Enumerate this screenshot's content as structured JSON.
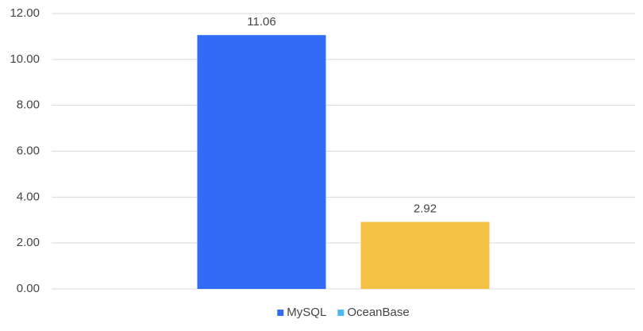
{
  "chart_data": {
    "type": "bar",
    "categories": [
      null
    ],
    "series": [
      {
        "name": "MySQL",
        "color": "#316bf6",
        "legend_color": "#316bf6",
        "values": [
          11.06
        ]
      },
      {
        "name": "OceanBase",
        "color": "#f4c242",
        "legend_color": "#4db8f2",
        "values": [
          2.92
        ]
      }
    ],
    "ylim": [
      0,
      12
    ],
    "yticks": [
      {
        "value": 0,
        "label": "0.00"
      },
      {
        "value": 2,
        "label": "2.00"
      },
      {
        "value": 4,
        "label": "4.00"
      },
      {
        "value": 6,
        "label": "6.00"
      },
      {
        "value": 8,
        "label": "8.00"
      },
      {
        "value": 10,
        "label": "10.00"
      },
      {
        "value": 12,
        "label": "12.00"
      }
    ],
    "grid": true,
    "legend": "bottom"
  }
}
